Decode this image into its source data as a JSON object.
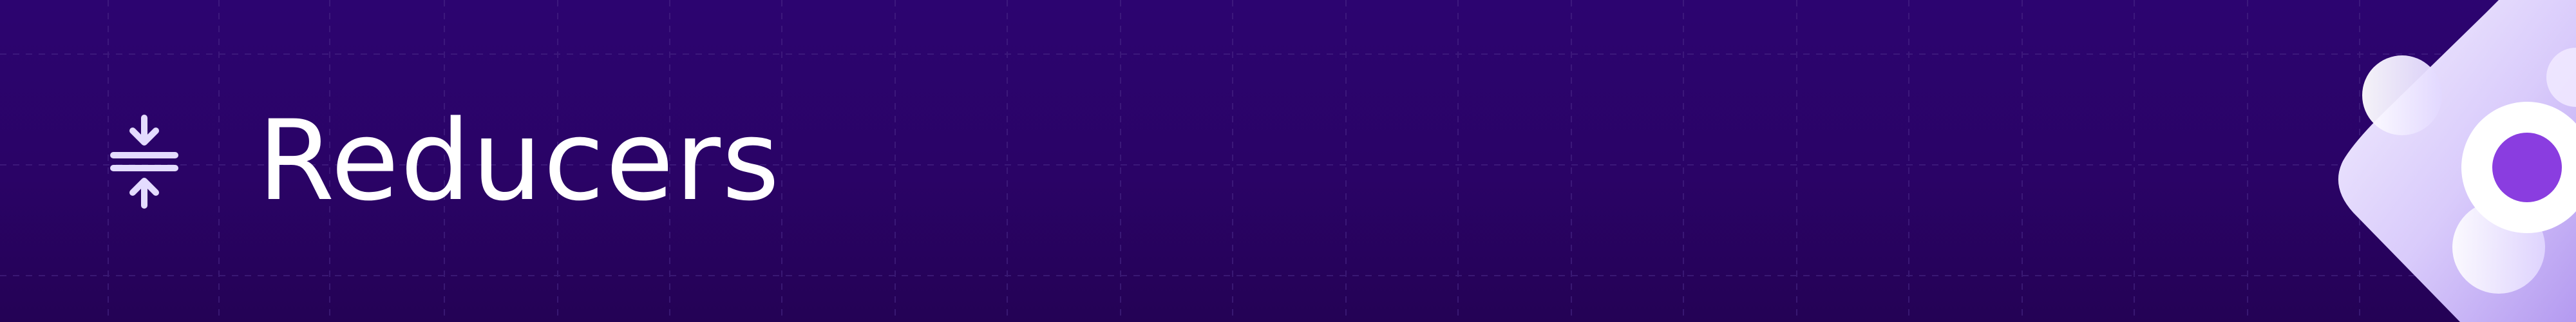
{
  "banner": {
    "title": "Reducers",
    "icon": "compress-vertical-icon",
    "decoration": "abstract-blob-logo",
    "colors": {
      "background_top": "#2c0470",
      "background_bottom": "#240255",
      "grid_line": "#4a2a88",
      "title_text": "#ffffff",
      "icon": "#e4dcff",
      "blob_light": "#f4f0ff",
      "blob_mid": "#c6b2f5",
      "dot": "#8a3de0"
    }
  }
}
